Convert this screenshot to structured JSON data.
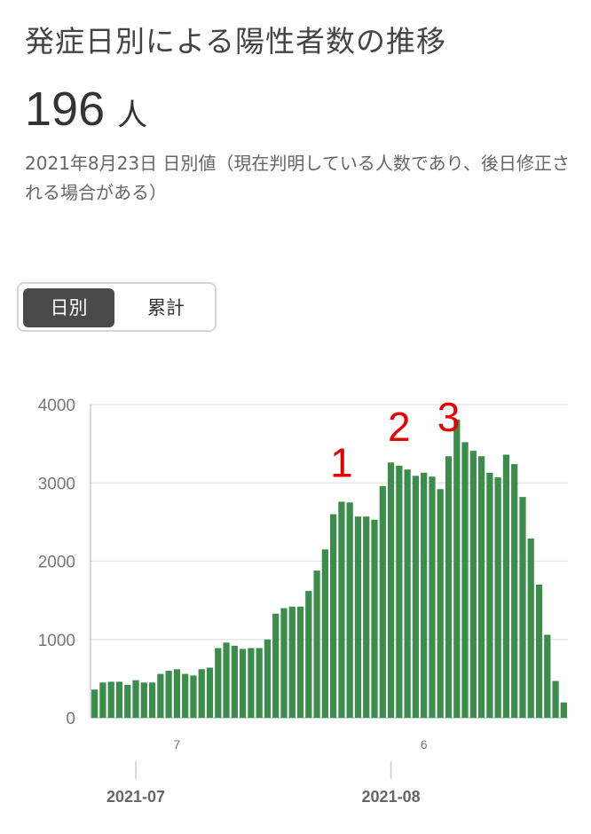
{
  "header": {
    "title": "発症日別による陽性者数の推移",
    "count_value": "196",
    "count_unit": "人",
    "note": "2021年8月23日 日別値（現在判明している人数であり、後日修正される場合がある）"
  },
  "toggle": {
    "daily_label": "日別",
    "cumulative_label": "累計"
  },
  "colors": {
    "bar": "#3c8c4c",
    "annotation": "#e60000"
  },
  "chart_data": {
    "type": "bar",
    "title": "",
    "xlabel": "",
    "ylabel": "",
    "ylim": [
      0,
      4000
    ],
    "y_ticks": [
      "0",
      "1000",
      "2000",
      "3000",
      "4000"
    ],
    "grid": true,
    "day_labels": [
      {
        "text": "7",
        "index": 10
      },
      {
        "text": "6",
        "index": 40
      }
    ],
    "month_labels": [
      {
        "text": "2021-07",
        "index": 5
      },
      {
        "text": "2021-08",
        "index": 36
      }
    ],
    "series": [
      {
        "values": [
          360,
          450,
          460,
          460,
          420,
          480,
          450,
          450,
          560,
          600,
          620,
          560,
          540,
          620,
          640,
          890,
          960,
          920,
          880,
          890,
          890,
          1000,
          1330,
          1400,
          1420,
          1420,
          1620,
          1880,
          2150,
          2600,
          2760,
          2750,
          2570,
          2570,
          2530,
          2960,
          3260,
          3220,
          3170,
          3090,
          3130,
          3080,
          2920,
          3340,
          3810,
          3520,
          3410,
          3340,
          3130,
          3070,
          3360,
          3240,
          2820,
          2290,
          1700,
          1060,
          470,
          196
        ]
      }
    ],
    "annotations": [
      {
        "text": "1",
        "index": 30
      },
      {
        "text": "2",
        "index": 37
      },
      {
        "text": "3",
        "index": 43
      }
    ]
  }
}
